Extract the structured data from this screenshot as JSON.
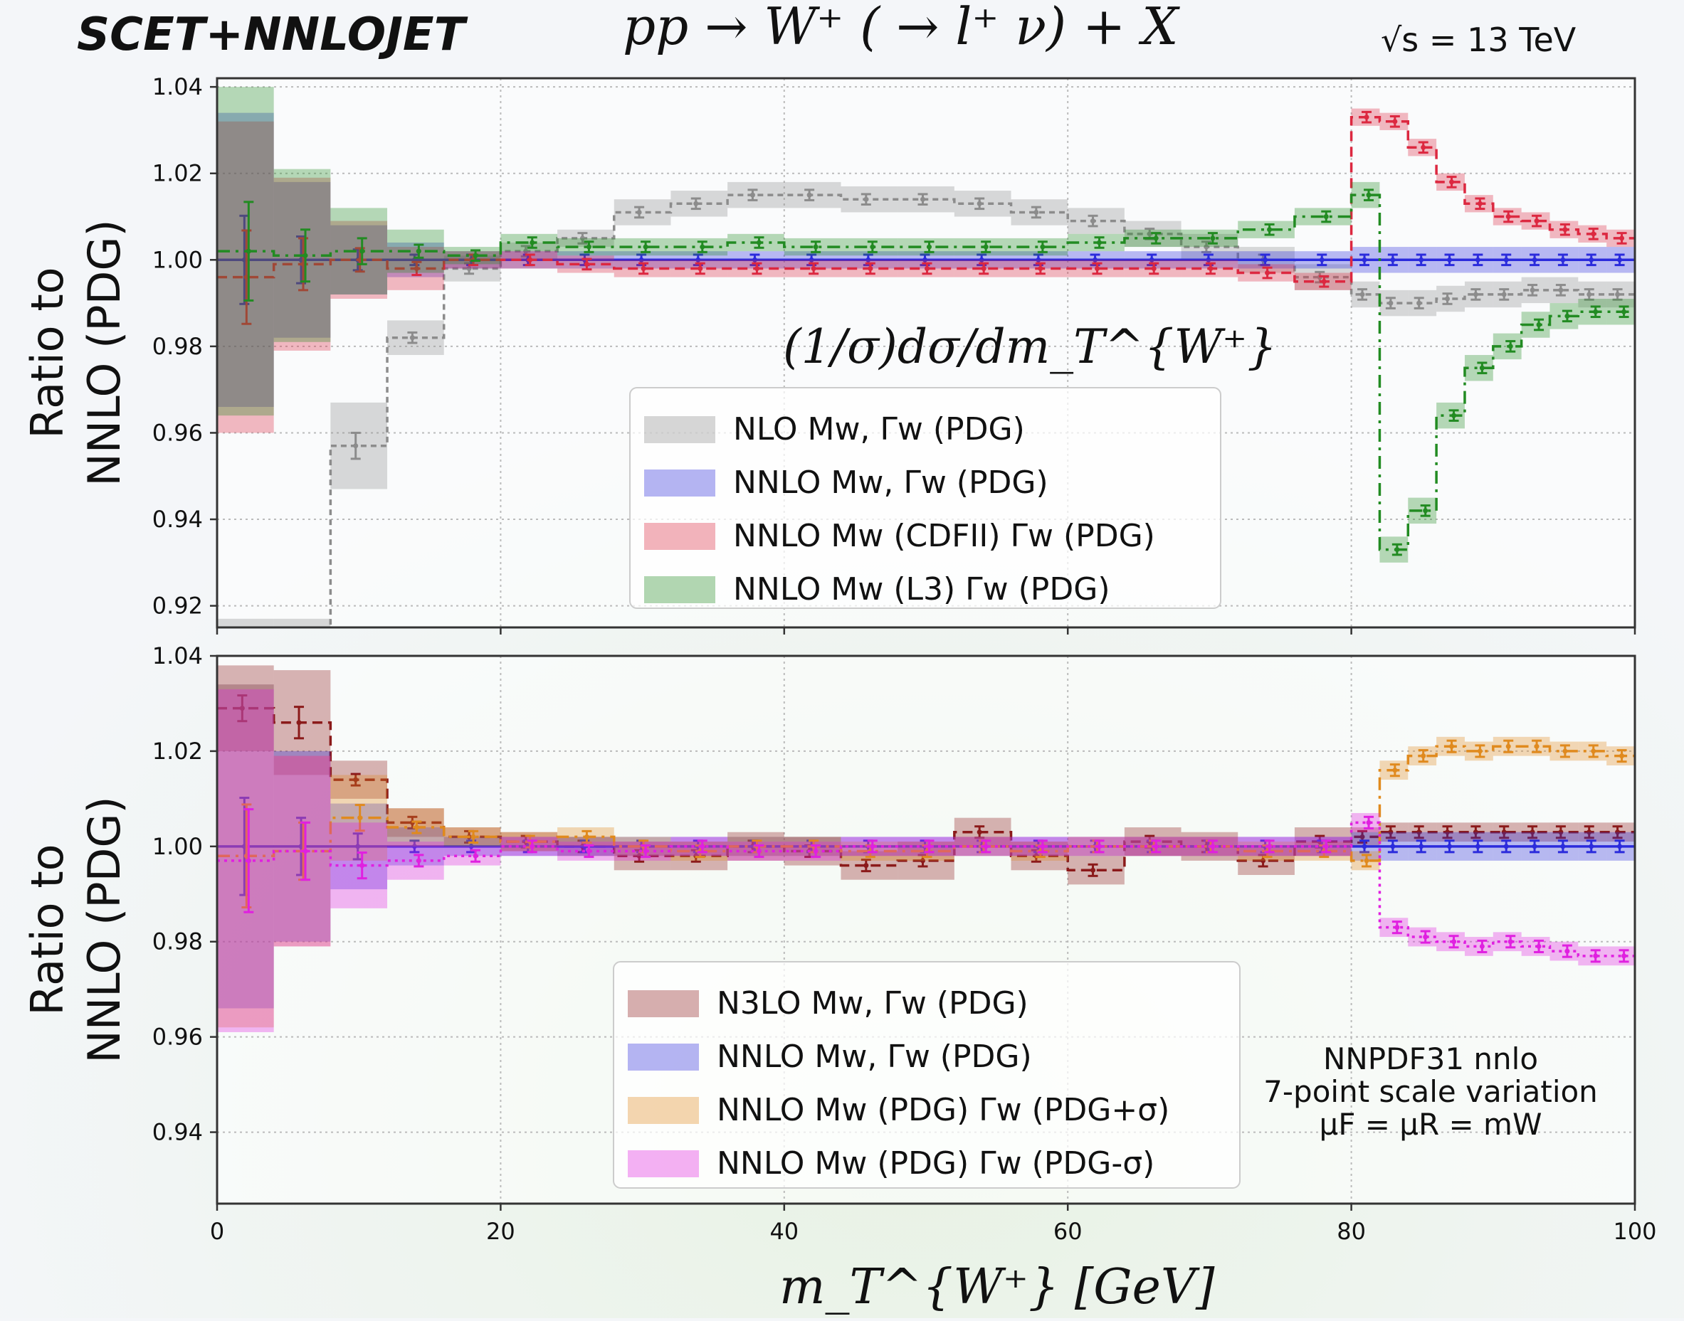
{
  "header": {
    "brand": "SCET+NNLOJET",
    "process": "pp → W⁺ ( → l⁺ ν)  +  X",
    "energy": "√s = 13 TeV"
  },
  "colors": {
    "grey": "#8c8c8c",
    "blue": "#2b2bdc",
    "red": "#dc2840",
    "green": "#228b22",
    "darkred": "#8b1a1a",
    "orange": "#e08a1e",
    "magenta": "#e020e0"
  },
  "chart_data": [
    {
      "type": "line",
      "panel": "top",
      "annotation": "(1/σ)dσ/dm_T^{W⁺}",
      "ylabel_lines": [
        "Ratio to",
        "NNLO (PDG)"
      ],
      "xlim": [
        0,
        100
      ],
      "ylim": [
        0.915,
        1.042
      ],
      "yticks": [
        "1.04",
        "1.02",
        "1.00",
        "0.98",
        "0.96",
        "0.94",
        "0.92"
      ],
      "xticks": [],
      "legend_position": "center-left",
      "legend": [
        "NLO Mw, Γw (PDG)",
        "NNLO Mw, Γw (PDG)",
        "NNLO Mw (CDFII) Γw (PDG)",
        "NNLO Mw (L3) Γw (PDG)"
      ],
      "x_edges": [
        0,
        4,
        8,
        12,
        16,
        20,
        24,
        28,
        32,
        36,
        40,
        44,
        48,
        52,
        56,
        60,
        64,
        68,
        72,
        76,
        80,
        82,
        84,
        86,
        88,
        90,
        92,
        94,
        96,
        98,
        100
      ],
      "series": [
        {
          "name": "NLO Mw, Γw (PDG)",
          "color": "grey",
          "values": [
            0.905,
            0.905,
            0.957,
            0.982,
            0.998,
            1.002,
            1.005,
            1.011,
            1.013,
            1.015,
            1.015,
            1.014,
            1.014,
            1.013,
            1.011,
            1.009,
            1.006,
            1.003,
            1.0,
            0.996,
            0.992,
            0.99,
            0.99,
            0.991,
            0.992,
            0.992,
            0.993,
            0.993,
            0.992,
            0.992
          ],
          "band": [
            0.012,
            0.012,
            0.01,
            0.004,
            0.003,
            0.002,
            0.002,
            0.003,
            0.003,
            0.003,
            0.003,
            0.003,
            0.003,
            0.003,
            0.003,
            0.003,
            0.003,
            0.003,
            0.003,
            0.003,
            0.003,
            0.003,
            0.003,
            0.003,
            0.003,
            0.003,
            0.003,
            0.003,
            0.003,
            0.003
          ]
        },
        {
          "name": "NNLO Mw, Γw (PDG)",
          "color": "blue",
          "values": [
            1.0,
            1.0,
            1.0,
            1.0,
            1.0,
            1.0,
            1.0,
            1.0,
            1.0,
            1.0,
            1.0,
            1.0,
            1.0,
            1.0,
            1.0,
            1.0,
            1.0,
            1.0,
            1.0,
            1.0,
            1.0,
            1.0,
            1.0,
            1.0,
            1.0,
            1.0,
            1.0,
            1.0,
            1.0,
            1.0
          ],
          "band": [
            0.034,
            0.018,
            0.008,
            0.004,
            0.002,
            0.002,
            0.002,
            0.002,
            0.002,
            0.002,
            0.002,
            0.002,
            0.002,
            0.002,
            0.002,
            0.002,
            0.002,
            0.002,
            0.002,
            0.002,
            0.003,
            0.003,
            0.003,
            0.003,
            0.003,
            0.003,
            0.003,
            0.003,
            0.003,
            0.003
          ]
        },
        {
          "name": "NNLO Mw (CDFII) Γw (PDG)",
          "color": "red",
          "values": [
            0.996,
            0.999,
            1.0,
            0.998,
            1.0,
            1.0,
            0.999,
            0.998,
            0.998,
            0.998,
            0.998,
            0.998,
            0.998,
            0.998,
            0.998,
            0.998,
            0.998,
            0.998,
            0.997,
            0.995,
            1.033,
            1.032,
            1.026,
            1.018,
            1.013,
            1.01,
            1.009,
            1.007,
            1.006,
            1.005
          ],
          "band": [
            0.036,
            0.02,
            0.009,
            0.005,
            0.002,
            0.002,
            0.002,
            0.002,
            0.002,
            0.002,
            0.002,
            0.002,
            0.002,
            0.002,
            0.002,
            0.002,
            0.002,
            0.002,
            0.002,
            0.002,
            0.002,
            0.002,
            0.002,
            0.002,
            0.002,
            0.002,
            0.002,
            0.002,
            0.002,
            0.002
          ]
        },
        {
          "name": "NNLO Mw (L3) Γw (PDG)",
          "color": "green",
          "values": [
            1.002,
            1.001,
            1.002,
            1.002,
            1.001,
            1.004,
            1.003,
            1.003,
            1.003,
            1.004,
            1.003,
            1.003,
            1.003,
            1.003,
            1.003,
            1.004,
            1.005,
            1.005,
            1.007,
            1.01,
            1.015,
            0.933,
            0.942,
            0.964,
            0.975,
            0.98,
            0.985,
            0.987,
            0.988,
            0.988
          ],
          "band": [
            0.038,
            0.02,
            0.01,
            0.005,
            0.002,
            0.002,
            0.002,
            0.002,
            0.002,
            0.002,
            0.002,
            0.002,
            0.002,
            0.002,
            0.002,
            0.002,
            0.002,
            0.002,
            0.002,
            0.002,
            0.003,
            0.003,
            0.003,
            0.003,
            0.003,
            0.003,
            0.003,
            0.003,
            0.003,
            0.003
          ]
        }
      ]
    },
    {
      "type": "line",
      "panel": "bottom",
      "ylabel_lines": [
        "Ratio to",
        "NNLO (PDG)"
      ],
      "xlabel": "m_T^{W⁺}  [GeV]",
      "xlim": [
        0,
        100
      ],
      "ylim": [
        0.925,
        1.04
      ],
      "yticks": [
        "1.04",
        "1.02",
        "1.00",
        "0.98",
        "0.96",
        "0.94"
      ],
      "xticks": [
        "0",
        "20",
        "40",
        "60",
        "80",
        "100"
      ],
      "legend_position": "lower-center",
      "legend": [
        "N3LO Mw, Γw (PDG)",
        "NNLO Mw, Γw (PDG)",
        "NNLO Mw (PDG) Γw (PDG+σ)",
        "NNLO Mw (PDG) Γw (PDG-σ)"
      ],
      "note_lines": [
        "NNPDF31 nnlo",
        "7-point scale variation",
        "μF = μR = mW"
      ],
      "x_edges": [
        0,
        4,
        8,
        12,
        16,
        20,
        24,
        28,
        32,
        36,
        40,
        44,
        48,
        52,
        56,
        60,
        64,
        68,
        72,
        76,
        80,
        82,
        84,
        86,
        88,
        90,
        92,
        94,
        96,
        98,
        100
      ],
      "series": [
        {
          "name": "N3LO Mw, Γw (PDG)",
          "color": "darkred",
          "values": [
            1.029,
            1.026,
            1.014,
            1.005,
            1.002,
            1.001,
            1.0,
            0.998,
            0.998,
            1.0,
            0.999,
            0.996,
            0.997,
            1.003,
            0.998,
            0.995,
            1.001,
            1.0,
            0.997,
            1.001,
            1.002,
            1.003,
            1.003,
            1.003,
            1.003,
            1.003,
            1.003,
            1.003,
            1.003,
            1.003
          ],
          "band": [
            0.009,
            0.011,
            0.004,
            0.003,
            0.002,
            0.002,
            0.002,
            0.003,
            0.003,
            0.003,
            0.003,
            0.003,
            0.004,
            0.003,
            0.003,
            0.003,
            0.003,
            0.003,
            0.003,
            0.003,
            0.002,
            0.002,
            0.002,
            0.002,
            0.002,
            0.002,
            0.002,
            0.002,
            0.002,
            0.002
          ]
        },
        {
          "name": "NNLO Mw, Γw (PDG)",
          "color": "blue",
          "values": [
            1.0,
            1.0,
            1.0,
            1.0,
            1.0,
            1.0,
            1.0,
            1.0,
            1.0,
            1.0,
            1.0,
            1.0,
            1.0,
            1.0,
            1.0,
            1.0,
            1.0,
            1.0,
            1.0,
            1.0,
            1.0,
            1.0,
            1.0,
            1.0,
            1.0,
            1.0,
            1.0,
            1.0,
            1.0,
            1.0
          ],
          "band": [
            0.034,
            0.02,
            0.009,
            0.004,
            0.002,
            0.002,
            0.002,
            0.002,
            0.002,
            0.002,
            0.002,
            0.002,
            0.002,
            0.002,
            0.002,
            0.002,
            0.002,
            0.002,
            0.002,
            0.002,
            0.003,
            0.003,
            0.003,
            0.003,
            0.003,
            0.003,
            0.003,
            0.003,
            0.003,
            0.003
          ]
        },
        {
          "name": "NNLO Mw (PDG) Γw (PDG+σ)",
          "color": "orange",
          "values": [
            0.998,
            0.999,
            1.006,
            1.004,
            1.002,
            1.001,
            1.002,
            1.0,
            0.999,
            1.0,
            1.0,
            0.999,
            0.999,
            1.0,
            0.999,
            1.0,
            1.0,
            1.0,
            0.999,
            0.999,
            0.997,
            1.016,
            1.019,
            1.021,
            1.02,
            1.021,
            1.021,
            1.02,
            1.02,
            1.019
          ],
          "band": [
            0.036,
            0.02,
            0.009,
            0.004,
            0.002,
            0.002,
            0.002,
            0.002,
            0.002,
            0.002,
            0.002,
            0.002,
            0.002,
            0.002,
            0.002,
            0.002,
            0.002,
            0.002,
            0.002,
            0.002,
            0.002,
            0.002,
            0.002,
            0.002,
            0.002,
            0.002,
            0.002,
            0.002,
            0.002,
            0.002
          ]
        },
        {
          "name": "NNLO Mw (PDG) Γw (PDG-σ)",
          "color": "magenta",
          "values": [
            0.997,
            0.999,
            0.996,
            0.997,
            0.998,
            1.0,
            0.999,
            0.999,
            1.0,
            0.999,
            0.999,
            1.0,
            1.0,
            1.0,
            1.0,
            1.0,
            1.0,
            1.0,
            1.0,
            1.0,
            1.005,
            0.983,
            0.981,
            0.98,
            0.979,
            0.98,
            0.979,
            0.978,
            0.977,
            0.977
          ],
          "band": [
            0.036,
            0.02,
            0.009,
            0.004,
            0.002,
            0.002,
            0.002,
            0.002,
            0.002,
            0.002,
            0.002,
            0.002,
            0.002,
            0.002,
            0.002,
            0.002,
            0.002,
            0.002,
            0.002,
            0.002,
            0.002,
            0.002,
            0.002,
            0.002,
            0.002,
            0.002,
            0.002,
            0.002,
            0.002,
            0.002
          ]
        }
      ]
    }
  ]
}
